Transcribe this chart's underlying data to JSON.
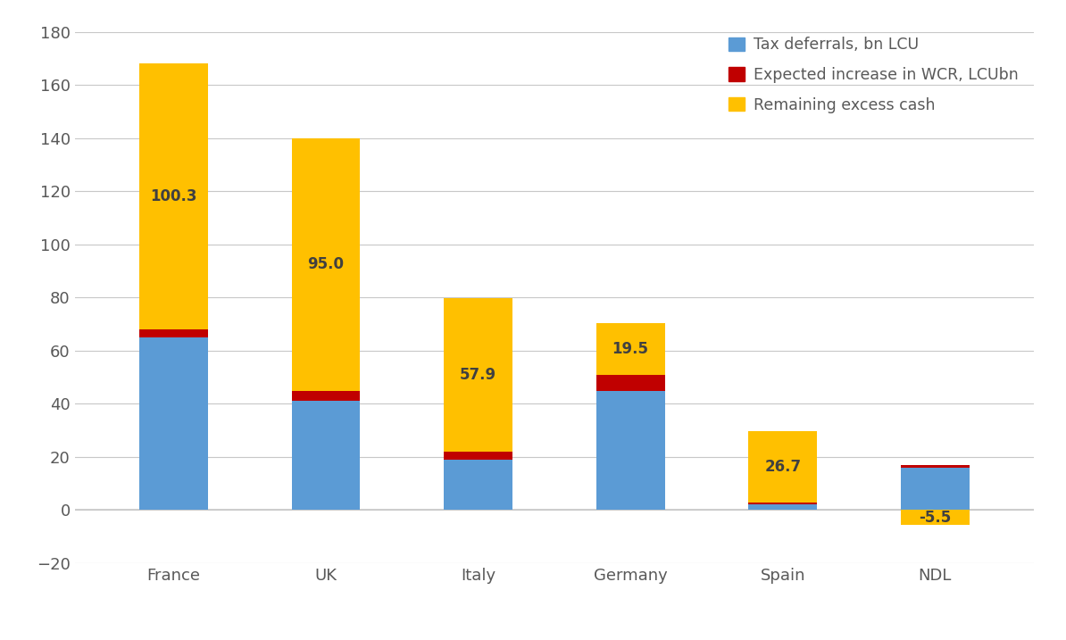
{
  "categories": [
    "France",
    "UK",
    "Italy",
    "Germany",
    "Spain",
    "NDL"
  ],
  "tax_deferrals": [
    65.0,
    41.0,
    19.0,
    45.0,
    2.0,
    16.0
  ],
  "wcr_increase": [
    3.0,
    4.0,
    3.0,
    6.0,
    1.0,
    1.0
  ],
  "excess_cash": [
    100.3,
    95.0,
    57.9,
    19.5,
    26.7,
    -5.5
  ],
  "label_excess_cash": [
    "100.3",
    "95.0",
    "57.9",
    "19.5",
    "26.7",
    "-5.5"
  ],
  "color_blue": "#5B9BD5",
  "color_red": "#C00000",
  "color_yellow": "#FFC000",
  "ylim_min": -20,
  "ylim_max": 180,
  "yticks": [
    -20,
    0,
    20,
    40,
    60,
    80,
    100,
    120,
    140,
    160,
    180
  ],
  "legend_labels": [
    "Tax deferrals, bn LCU",
    "Expected increase in WCR, LCUbn",
    "Remaining excess cash"
  ],
  "bar_width": 0.45,
  "background_color": "#FFFFFF",
  "grid_color": "#C8C8C8",
  "text_color": "#595959",
  "label_color_yellow_bar": "#404040"
}
